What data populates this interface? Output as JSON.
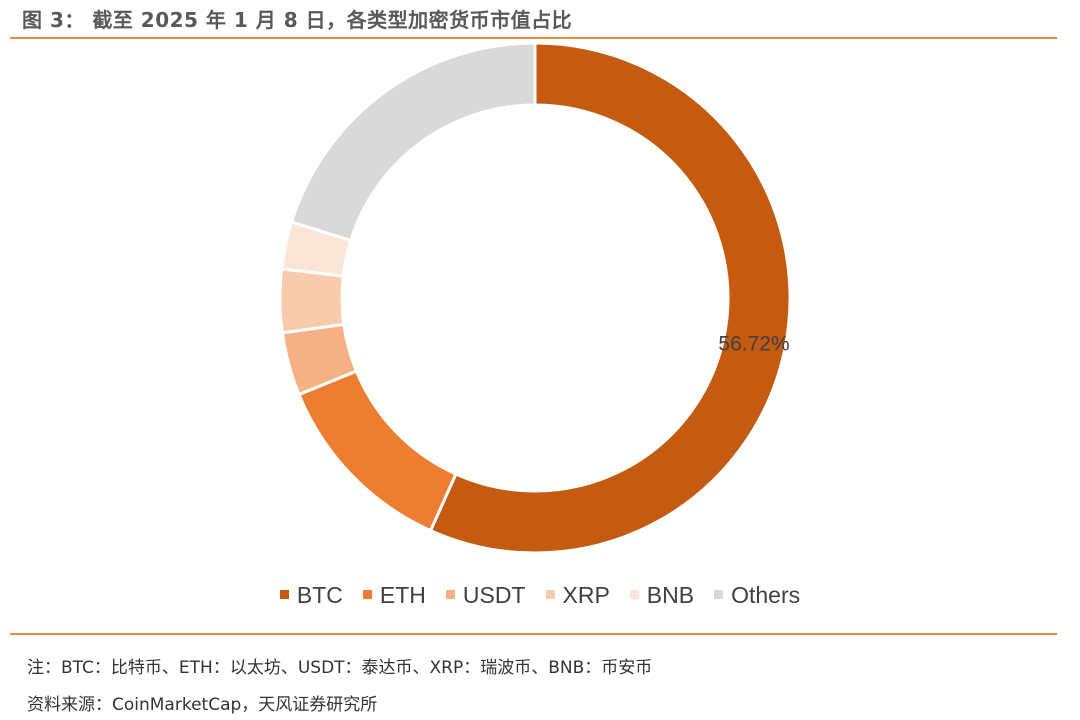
{
  "title": "图 3： 截至 2025 年 1 月 8 日，各类型加密货币市值占比",
  "colors": {
    "accent_rule": "#ED8B3A",
    "title_text": "#595959",
    "label_text": "#404040"
  },
  "chart_data": {
    "type": "pie",
    "style": "donut",
    "legend_position": "bottom",
    "categories": [
      "BTC",
      "ETH",
      "USDT",
      "XRP",
      "BNB",
      "Others"
    ],
    "values": [
      56.72,
      12.1,
      4.0,
      4.0,
      3.0,
      20.18
    ],
    "colors": [
      "#C55A11",
      "#ED7D31",
      "#F4B183",
      "#F8CBAD",
      "#FBE5D6",
      "#D9D9D9"
    ],
    "data_labels": [
      "56.72%",
      "",
      "",
      "",
      "",
      ""
    ]
  },
  "notes": {
    "note_line": "注：BTC：比特币、ETH：以太坊、USDT：泰达币、XRP：瑞波币、BNB：币安币",
    "source_line": "资料来源：CoinMarketCap，天风证券研究所"
  }
}
